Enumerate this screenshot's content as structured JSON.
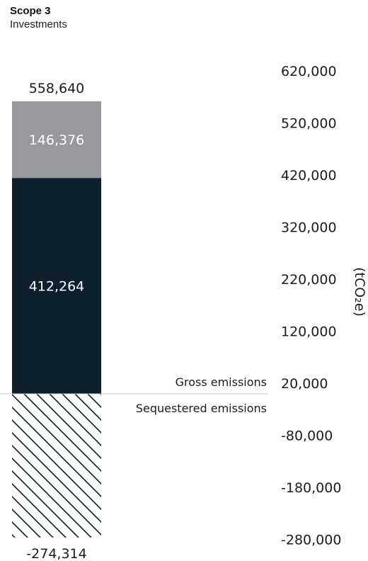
{
  "header": {
    "title": "Scope 3",
    "subtitle": "Investments"
  },
  "chart_data": {
    "type": "bar",
    "categories": [
      "Investments"
    ],
    "series": [
      {
        "values": [
          412264
        ],
        "color": "#0c1f2b",
        "style": "solid"
      },
      {
        "values": [
          146376
        ],
        "color": "#98999c",
        "style": "solid"
      },
      {
        "values": [
          -274314
        ],
        "color": "#0c1f2b",
        "style": "hatched"
      }
    ],
    "total_label": "558,640",
    "segment_labels": [
      "412,264",
      "146,376",
      "-274,314"
    ],
    "zone_labels": [
      "Gross emissions",
      "Sequestered emissions"
    ],
    "ylabel": "(tCO₂e)",
    "yticks": [
      620000,
      520000,
      420000,
      320000,
      220000,
      120000,
      20000,
      -80000,
      -180000,
      -280000
    ],
    "ytick_labels": [
      "620,000",
      "520,000",
      "420,000",
      "320,000",
      "220,000",
      "120,000",
      "20,000",
      "-80,000",
      "-180,000",
      "-280,000"
    ],
    "ylim": [
      -302000,
      652000
    ],
    "baseline_color": "#c8c8c8"
  }
}
